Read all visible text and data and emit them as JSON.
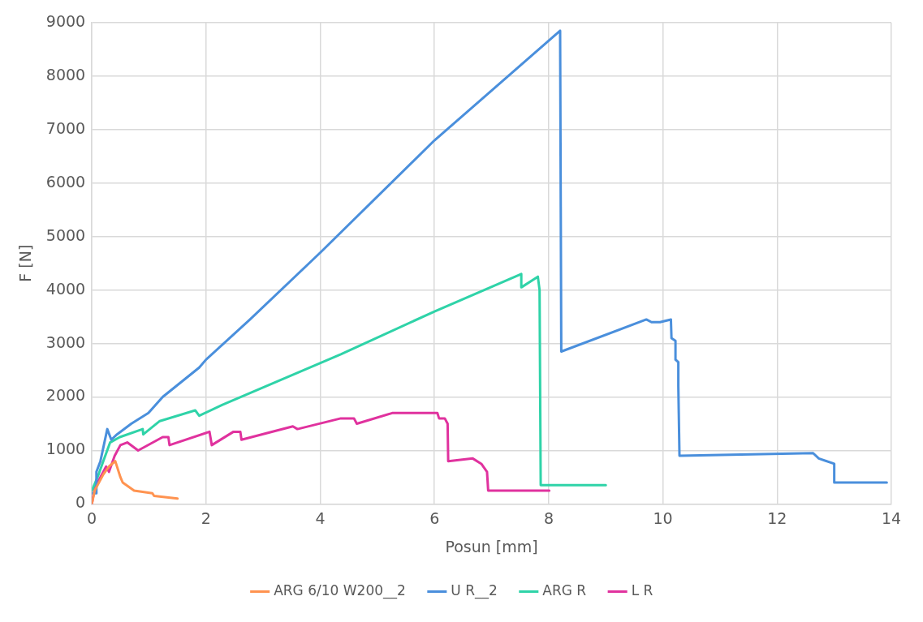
{
  "chart_data": {
    "type": "line",
    "xlabel": "Posun [mm]",
    "ylabel": "F [N]",
    "xlim": [
      0,
      14
    ],
    "xticks": [
      0,
      2,
      4,
      6,
      8,
      10,
      12,
      14
    ],
    "ylim": [
      0,
      9000
    ],
    "yticks": [
      0,
      1000,
      2000,
      3000,
      4000,
      5000,
      6000,
      7000,
      8000,
      9000
    ],
    "grid": true,
    "legend": "bottom",
    "marker": "none",
    "line_style": "solid",
    "series": [
      {
        "name": "ARG 6/10 W200__2",
        "color": "#ff9350",
        "x": [
          0,
          0.05,
          0.2,
          0.3,
          0.41,
          0.5,
          0.54,
          0.74,
          1.06,
          1.09,
          1.5
        ],
        "values": [
          0,
          250,
          550,
          700,
          800,
          500,
          400,
          250,
          200,
          150,
          100
        ]
      },
      {
        "name": "U R__2",
        "color": "#4a8fdc",
        "x": [
          0,
          0.07,
          0.08,
          0.15,
          0.27,
          0.34,
          0.44,
          0.69,
          0.99,
          1.24,
          1.88,
          2.0,
          2.77,
          4.0,
          6.0,
          8.2,
          8.22,
          9.71,
          9.8,
          9.95,
          10.14,
          10.15,
          10.22,
          10.22,
          10.27,
          10.27,
          10.29,
          12.63,
          12.73,
          13.0,
          13.0,
          13.92
        ],
        "values": [
          200,
          200,
          600,
          800,
          1400,
          1200,
          1300,
          1500,
          1700,
          2000,
          2550,
          2700,
          3450,
          4700,
          6800,
          8850,
          2850,
          3450,
          3400,
          3400,
          3450,
          3100,
          3050,
          2700,
          2650,
          2200,
          900,
          950,
          850,
          750,
          400,
          400
        ]
      },
      {
        "name": "ARG R",
        "color": "#2fd3a8",
        "x": [
          0,
          0.1,
          0.2,
          0.32,
          0.49,
          0.89,
          0.9,
          1.19,
          1.81,
          1.88,
          2.28,
          4.36,
          6.0,
          7.52,
          7.52,
          7.81,
          7.84,
          7.86,
          9.0
        ],
        "values": [
          250,
          500,
          800,
          1150,
          1250,
          1400,
          1300,
          1550,
          1750,
          1650,
          1850,
          2800,
          3600,
          4300,
          4050,
          4250,
          4000,
          350,
          350
        ]
      },
      {
        "name": "L R",
        "color": "#e0329e",
        "x": [
          0,
          0.05,
          0.15,
          0.25,
          0.3,
          0.4,
          0.5,
          0.62,
          0.81,
          1.24,
          1.34,
          1.36,
          2.06,
          2.1,
          2.48,
          2.6,
          2.62,
          3.52,
          3.6,
          4.36,
          4.59,
          4.64,
          5.26,
          6.05,
          6.08,
          6.18,
          6.23,
          6.24,
          6.67,
          6.82,
          6.92,
          6.94,
          8.01
        ],
        "values": [
          0,
          300,
          500,
          700,
          600,
          900,
          1100,
          1150,
          1000,
          1250,
          1250,
          1100,
          1350,
          1100,
          1350,
          1350,
          1200,
          1450,
          1400,
          1600,
          1600,
          1500,
          1700,
          1700,
          1600,
          1600,
          1500,
          800,
          850,
          750,
          600,
          250,
          250
        ]
      }
    ]
  }
}
